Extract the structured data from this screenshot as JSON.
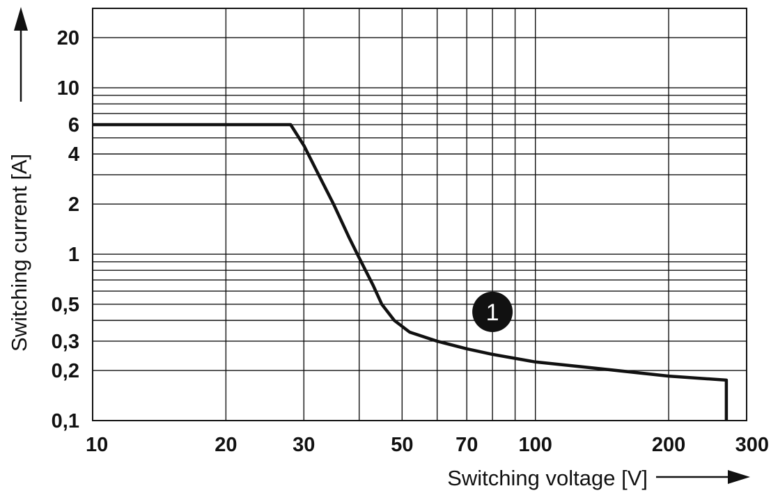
{
  "chart_data": {
    "type": "line",
    "title": "",
    "xlabel": "Switching voltage [V]",
    "ylabel": "Switching current [A]",
    "xscale": "log",
    "yscale": "log",
    "xlim": [
      10,
      300
    ],
    "ylim": [
      0.1,
      30
    ],
    "grid": true,
    "x_ticks": [
      {
        "value": 10,
        "label": "10"
      },
      {
        "value": 20,
        "label": "20"
      },
      {
        "value": 30,
        "label": "30"
      },
      {
        "value": 50,
        "label": "50"
      },
      {
        "value": 70,
        "label": "70"
      },
      {
        "value": 100,
        "label": "100"
      },
      {
        "value": 200,
        "label": "200"
      },
      {
        "value": 300,
        "label": "300"
      }
    ],
    "y_ticks": [
      {
        "value": 0.1,
        "label": "0,1"
      },
      {
        "value": 0.2,
        "label": "0,2"
      },
      {
        "value": 0.3,
        "label": "0,3"
      },
      {
        "value": 0.5,
        "label": "0,5"
      },
      {
        "value": 1,
        "label": "1"
      },
      {
        "value": 2,
        "label": "2"
      },
      {
        "value": 4,
        "label": "4"
      },
      {
        "value": 6,
        "label": "6"
      },
      {
        "value": 10,
        "label": "10"
      },
      {
        "value": 20,
        "label": "20"
      }
    ],
    "x_gridlines": [
      10,
      20,
      30,
      40,
      50,
      60,
      70,
      80,
      90,
      100,
      200,
      300
    ],
    "y_gridlines": [
      0.1,
      0.2,
      0.3,
      0.4,
      0.5,
      0.6,
      0.7,
      0.8,
      0.9,
      1,
      2,
      3,
      4,
      5,
      6,
      7,
      8,
      9,
      10,
      20,
      30
    ],
    "series": [
      {
        "x": [
          10,
          28,
          30,
          32,
          35,
          38,
          40,
          43,
          45,
          48,
          52,
          60,
          70,
          80,
          100,
          140,
          200,
          270,
          270
        ],
        "y": [
          6,
          6,
          4.5,
          3.2,
          2.0,
          1.25,
          0.95,
          0.65,
          0.5,
          0.4,
          0.34,
          0.3,
          0.27,
          0.25,
          0.225,
          0.205,
          0.185,
          0.175,
          0.1
        ],
        "color": "#111111"
      }
    ],
    "annotations": [
      {
        "text": "1",
        "x": 80,
        "y": 0.45
      }
    ]
  }
}
